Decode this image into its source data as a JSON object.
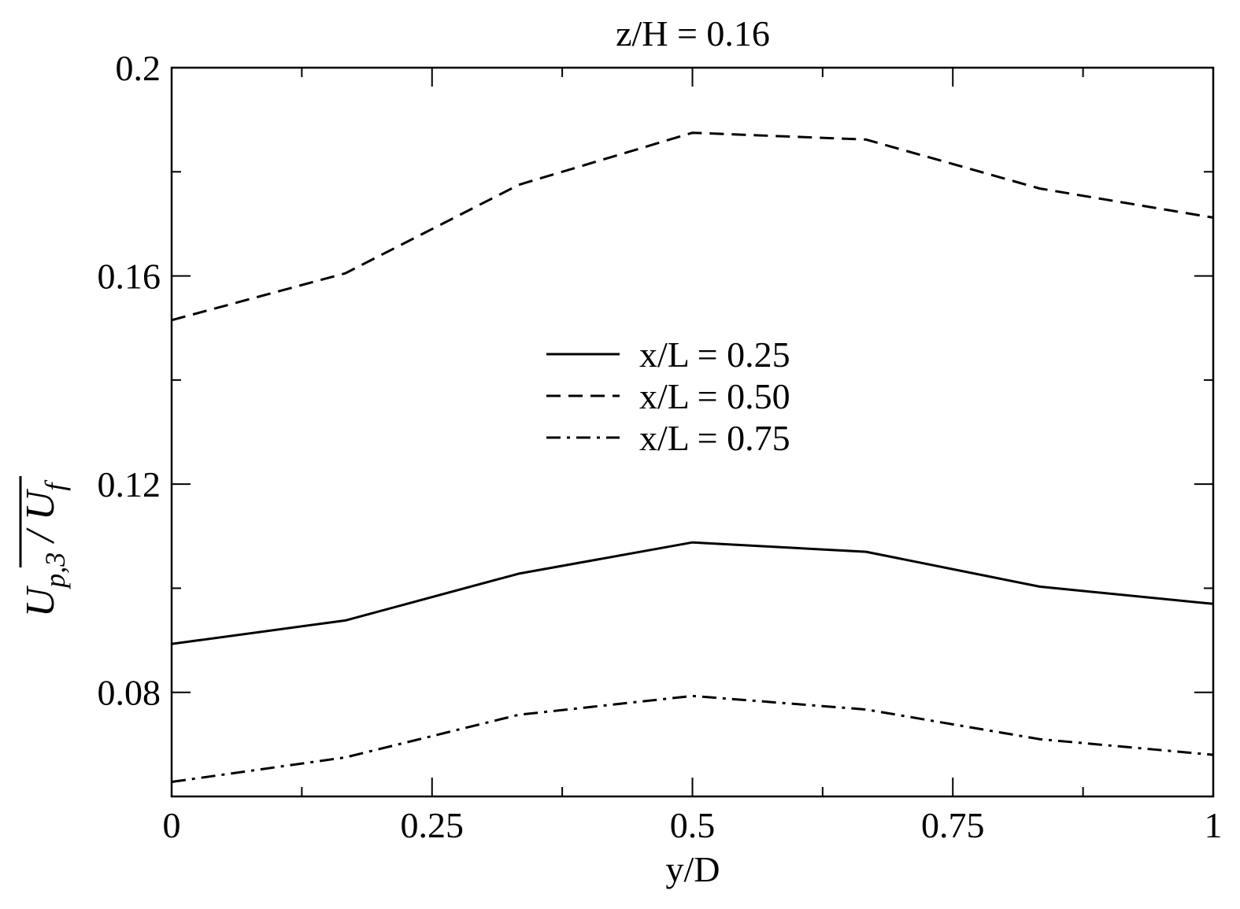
{
  "chart_data": {
    "type": "line",
    "title": "z/H = 0.16",
    "xlabel": "y/D",
    "ylabel": {
      "base": "U",
      "sub": "p,3",
      "sep": " / ",
      "base2": "U",
      "sub2": "f"
    },
    "xlim": [
      0,
      1
    ],
    "ylim": [
      0.06,
      0.2
    ],
    "xticks": [
      {
        "value": 0,
        "label": "0"
      },
      {
        "value": 0.25,
        "label": "0.25"
      },
      {
        "value": 0.5,
        "label": "0.5"
      },
      {
        "value": 0.75,
        "label": "0.75"
      },
      {
        "value": 1,
        "label": "1"
      }
    ],
    "xminor": [
      0.125,
      0.375,
      0.625,
      0.875
    ],
    "yticks": [
      {
        "value": 0.08,
        "label": "0.08"
      },
      {
        "value": 0.12,
        "label": "0.12"
      },
      {
        "value": 0.16,
        "label": "0.16"
      },
      {
        "value": 0.2,
        "label": "0.2"
      }
    ],
    "yminor": [
      0.1,
      0.14,
      0.18
    ],
    "grid": false,
    "legend_position": "center",
    "x": [
      0,
      0.1667,
      0.3333,
      0.5,
      0.6667,
      0.8333,
      1
    ],
    "series": [
      {
        "name": "x/L = 0.25",
        "style": "solid",
        "values": [
          0.0893,
          0.0938,
          0.1028,
          0.1088,
          0.107,
          0.1003,
          0.097
        ]
      },
      {
        "name": "x/L = 0.50",
        "style": "dashed",
        "values": [
          0.1515,
          0.1605,
          0.1775,
          0.1875,
          0.1862,
          0.1768,
          0.1712
        ]
      },
      {
        "name": "x/L = 0.75",
        "style": "dashdot",
        "values": [
          0.0628,
          0.0675,
          0.0757,
          0.0793,
          0.0767,
          0.071,
          0.068
        ]
      }
    ]
  }
}
